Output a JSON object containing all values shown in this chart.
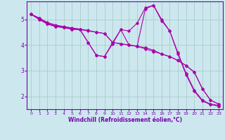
{
  "bg_color": "#cce8ee",
  "line_color": "#aa00aa",
  "grid_color": "#aacccc",
  "axis_color": "#7700aa",
  "xlabel": "Windchill (Refroidissement éolien,°C)",
  "xlim": [
    -0.5,
    23.5
  ],
  "ylim": [
    1.5,
    5.7
  ],
  "yticks": [
    2,
    3,
    4,
    5
  ],
  "xticks": [
    0,
    1,
    2,
    3,
    4,
    5,
    6,
    7,
    8,
    9,
    10,
    11,
    12,
    13,
    14,
    15,
    16,
    17,
    18,
    19,
    20,
    21,
    22,
    23
  ],
  "lines": [
    {
      "x": [
        0,
        1,
        2,
        3,
        4,
        5,
        6,
        7,
        8,
        9,
        10,
        11,
        12,
        13,
        14,
        15,
        16,
        17,
        18,
        19,
        20,
        21,
        22,
        23
      ],
      "y": [
        5.2,
        5.05,
        4.88,
        4.78,
        4.72,
        4.67,
        4.62,
        4.57,
        4.5,
        4.45,
        4.1,
        4.05,
        4.0,
        3.95,
        3.85,
        3.75,
        3.65,
        3.55,
        3.4,
        3.2,
        2.95,
        2.3,
        1.85,
        1.7
      ]
    },
    {
      "x": [
        0,
        1,
        2,
        3,
        4,
        5,
        6,
        7,
        8,
        9,
        10,
        11,
        12,
        13,
        14,
        15,
        16,
        17,
        18,
        19,
        20,
        21,
        22,
        23
      ],
      "y": [
        5.2,
        5.05,
        4.85,
        4.75,
        4.7,
        4.65,
        4.6,
        4.55,
        4.5,
        4.45,
        4.1,
        4.05,
        4.0,
        3.95,
        3.9,
        3.8,
        3.65,
        3.55,
        3.4,
        3.2,
        2.95,
        2.3,
        1.85,
        1.7
      ]
    },
    {
      "x": [
        0,
        1,
        2,
        3,
        4,
        5,
        6,
        7,
        8,
        9,
        10,
        11,
        12,
        13,
        14,
        15,
        16,
        17,
        18,
        19,
        20,
        21,
        22,
        23
      ],
      "y": [
        5.2,
        5.0,
        4.82,
        4.72,
        4.68,
        4.62,
        4.6,
        4.1,
        3.6,
        3.55,
        4.1,
        4.6,
        4.55,
        4.85,
        5.45,
        5.55,
        5.0,
        4.55,
        3.7,
        2.9,
        2.25,
        1.85,
        1.7,
        1.65
      ]
    },
    {
      "x": [
        0,
        1,
        2,
        3,
        4,
        5,
        6,
        7,
        8,
        9,
        10,
        11,
        12,
        13,
        14,
        15,
        16,
        17,
        18,
        19,
        20,
        21,
        22,
        23
      ],
      "y": [
        5.2,
        5.0,
        4.82,
        4.72,
        4.68,
        4.62,
        4.6,
        4.1,
        3.6,
        3.55,
        4.05,
        4.6,
        4.0,
        3.95,
        5.4,
        5.55,
        4.95,
        4.55,
        3.65,
        2.85,
        2.2,
        1.82,
        1.68,
        1.62
      ]
    }
  ]
}
